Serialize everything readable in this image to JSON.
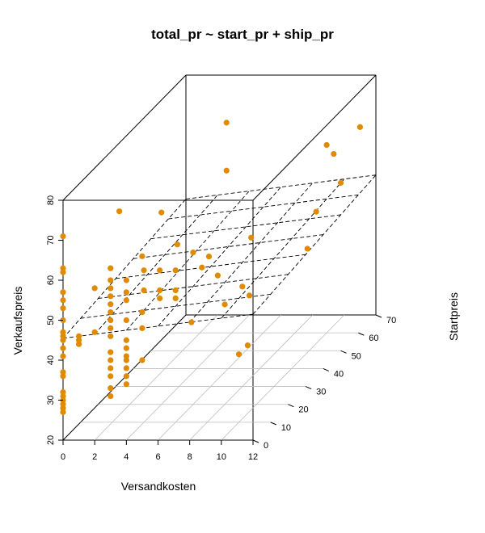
{
  "chart_data": {
    "type": "scatter3d",
    "title": "total_pr ~ start_pr + ship_pr",
    "xlabel": "Versandkosten",
    "ylabel": "Startpreis",
    "zlabel": "Verkaufspreis",
    "xlim": [
      0,
      12
    ],
    "ylim": [
      0,
      70
    ],
    "zlim": [
      20,
      80
    ],
    "xticks": [
      "0",
      "2",
      "4",
      "6",
      "8",
      "10",
      "12"
    ],
    "yticks": [
      "0",
      "10",
      "20",
      "30",
      "40",
      "50",
      "60",
      "70"
    ],
    "zticks": [
      "20",
      "30",
      "40",
      "50",
      "60",
      "70",
      "80"
    ],
    "point_color": "#E08A00",
    "regression_plane": {
      "intercept": 45.5,
      "slope_x": 0.5,
      "slope_y": 0.05
    },
    "grid_floor": true,
    "points": [
      [
        0,
        0,
        71
      ],
      [
        0,
        0,
        63
      ],
      [
        0,
        0,
        62
      ],
      [
        0,
        0,
        57
      ],
      [
        0,
        0,
        55
      ],
      [
        0,
        0,
        53
      ],
      [
        0,
        0,
        50
      ],
      [
        0,
        0,
        47
      ],
      [
        0,
        0,
        46
      ],
      [
        0,
        0,
        45
      ],
      [
        0,
        0,
        43
      ],
      [
        0,
        0,
        41
      ],
      [
        0,
        0,
        37
      ],
      [
        0,
        0,
        36
      ],
      [
        0,
        0,
        32
      ],
      [
        0,
        0,
        31
      ],
      [
        0,
        0,
        30
      ],
      [
        0,
        0,
        29
      ],
      [
        0,
        0,
        28
      ],
      [
        0,
        0,
        27
      ],
      [
        1,
        0,
        46
      ],
      [
        1,
        0,
        45
      ],
      [
        1,
        0,
        44
      ],
      [
        2,
        0,
        47
      ],
      [
        2,
        0,
        58
      ],
      [
        3,
        0,
        63
      ],
      [
        3,
        0,
        60
      ],
      [
        3,
        0,
        58
      ],
      [
        3,
        0,
        56
      ],
      [
        3,
        0,
        54
      ],
      [
        3,
        0,
        52
      ],
      [
        3,
        0,
        50
      ],
      [
        3,
        0,
        48
      ],
      [
        3,
        0,
        46
      ],
      [
        3,
        0,
        42
      ],
      [
        3,
        0,
        40
      ],
      [
        3,
        0,
        38
      ],
      [
        3,
        0,
        36
      ],
      [
        3,
        0,
        33
      ],
      [
        3,
        0,
        31
      ],
      [
        4,
        0,
        60
      ],
      [
        4,
        0,
        57
      ],
      [
        4,
        0,
        55
      ],
      [
        4,
        0,
        50
      ],
      [
        4,
        0,
        45
      ],
      [
        4,
        0,
        43
      ],
      [
        4,
        0,
        41
      ],
      [
        4,
        0,
        40
      ],
      [
        4,
        0,
        38
      ],
      [
        4,
        0,
        36
      ],
      [
        4,
        0,
        34
      ],
      [
        5,
        0,
        66
      ],
      [
        5,
        0,
        40
      ],
      [
        5,
        0,
        48
      ],
      [
        5,
        0,
        52
      ],
      [
        4,
        10,
        53
      ],
      [
        5,
        10,
        53
      ],
      [
        6,
        10,
        53
      ],
      [
        4,
        10,
        58
      ],
      [
        5,
        10,
        58
      ],
      [
        6,
        10,
        58
      ],
      [
        5,
        10,
        51
      ],
      [
        6,
        10,
        51
      ],
      [
        3,
        5,
        75
      ],
      [
        4,
        20,
        68
      ],
      [
        5,
        20,
        60
      ],
      [
        6,
        20,
        58
      ],
      [
        7,
        20,
        57
      ],
      [
        6,
        25,
        52
      ],
      [
        7,
        25,
        50
      ],
      [
        7,
        10,
        45
      ],
      [
        7,
        30,
        86
      ],
      [
        7,
        30,
        74
      ],
      [
        8,
        30,
        45
      ],
      [
        8,
        35,
        55
      ],
      [
        8,
        20,
        45
      ],
      [
        9,
        25,
        45
      ],
      [
        10,
        10,
        37
      ],
      [
        10,
        15,
        37
      ],
      [
        11,
        40,
        50
      ],
      [
        11,
        45,
        57
      ],
      [
        12,
        50,
        62
      ],
      [
        10,
        60,
        67
      ],
      [
        11,
        70,
        67
      ],
      [
        11,
        55,
        67
      ]
    ]
  }
}
